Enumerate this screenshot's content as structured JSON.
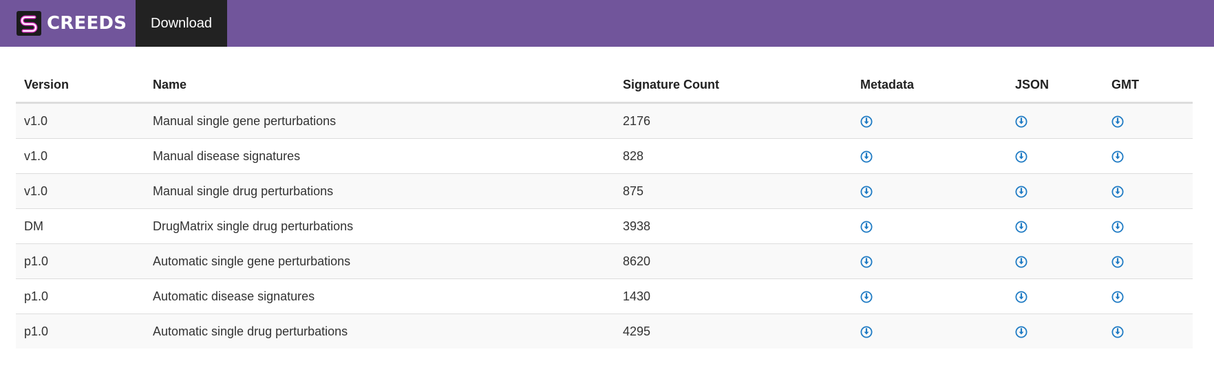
{
  "app": {
    "brand": "CREEDS",
    "logo_icon": "creeds-logo-icon",
    "nav": {
      "download_label": "Download"
    }
  },
  "colors": {
    "navbar": "#71559b",
    "nav_active": "#222222",
    "download_icon": "#1f7bc4"
  },
  "table": {
    "headers": {
      "version": "Version",
      "name": "Name",
      "count": "Signature Count",
      "metadata": "Metadata",
      "json": "JSON",
      "gmt": "GMT"
    },
    "download_icon": "download-circle-icon",
    "rows": [
      {
        "version": "v1.0",
        "name": "Manual single gene perturbations",
        "count": "2176"
      },
      {
        "version": "v1.0",
        "name": "Manual disease signatures",
        "count": "828"
      },
      {
        "version": "v1.0",
        "name": "Manual single drug perturbations",
        "count": "875"
      },
      {
        "version": "DM",
        "name": "DrugMatrix single drug perturbations",
        "count": "3938"
      },
      {
        "version": "p1.0",
        "name": "Automatic single gene perturbations",
        "count": "8620"
      },
      {
        "version": "p1.0",
        "name": "Automatic disease signatures",
        "count": "1430"
      },
      {
        "version": "p1.0",
        "name": "Automatic single drug perturbations",
        "count": "4295"
      }
    ]
  }
}
